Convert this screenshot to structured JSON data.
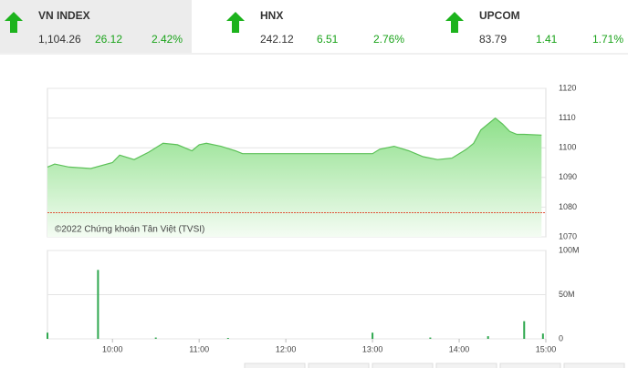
{
  "indices": [
    {
      "name": "VN INDEX",
      "value": "1,104.26",
      "change": "26.12",
      "percent": "2.42%"
    },
    {
      "name": "HNX",
      "value": "242.12",
      "change": "6.51",
      "percent": "2.76%"
    },
    {
      "name": "UPCOM",
      "value": "83.79",
      "change": "1.41",
      "percent": "1.71%"
    }
  ],
  "chart_data": [
    {
      "type": "area",
      "annotation": "©2022 Chứng khoán Tân Việt (TVSI)",
      "color": "#5cc158",
      "reference": 1078.14,
      "reference_color": "#e0563c",
      "x": [
        "09:15",
        "09:20",
        "09:30",
        "09:45",
        "10:00",
        "10:05",
        "10:15",
        "10:25",
        "10:35",
        "10:45",
        "10:55",
        "11:00",
        "11:05",
        "11:15",
        "11:25",
        "11:30",
        "11:45",
        "12:00",
        "12:30",
        "13:00",
        "13:05",
        "13:15",
        "13:25",
        "13:35",
        "13:45",
        "13:55",
        "14:00",
        "14:05",
        "14:10",
        "14:15",
        "14:20",
        "14:25",
        "14:30",
        "14:35",
        "14:40",
        "14:45",
        "14:57"
      ],
      "values": [
        1093.5,
        1094.5,
        1093.5,
        1093,
        1095,
        1097.5,
        1096,
        1098.5,
        1101.5,
        1101,
        1099,
        1101,
        1101.5,
        1100.5,
        1099,
        1098,
        1098,
        1098,
        1098,
        1098,
        1099.5,
        1100.5,
        1099,
        1097,
        1096,
        1096.5,
        1098,
        1099.5,
        1101.5,
        1106,
        1108,
        1110,
        1108,
        1105.5,
        1104.5,
        1104.5,
        1104.26
      ],
      "xlim": [
        "09:15",
        "15:00"
      ],
      "ylim": [
        1070,
        1120
      ],
      "yticks": [
        1070,
        1080,
        1090,
        1100,
        1110,
        1120
      ],
      "grid": true
    },
    {
      "type": "bar",
      "color": "#2fa84f",
      "x": [
        "09:15",
        "09:50",
        "10:30",
        "11:20",
        "13:00",
        "13:40",
        "14:20",
        "14:45",
        "14:58"
      ],
      "values": [
        7000000,
        78000000,
        1500000,
        1000000,
        7000000,
        1500000,
        3000000,
        20000000,
        6000000
      ],
      "xlim": [
        "09:15",
        "15:00"
      ],
      "ylim": [
        0,
        100000000
      ],
      "yticks": [
        0,
        {
          "value": 50000000,
          "label": "50M"
        },
        {
          "value": 100000000,
          "label": "100M"
        }
      ],
      "xticks": [
        "10:00",
        "11:00",
        "12:00",
        "13:00",
        "14:00",
        "15:00"
      ],
      "grid": true
    }
  ]
}
